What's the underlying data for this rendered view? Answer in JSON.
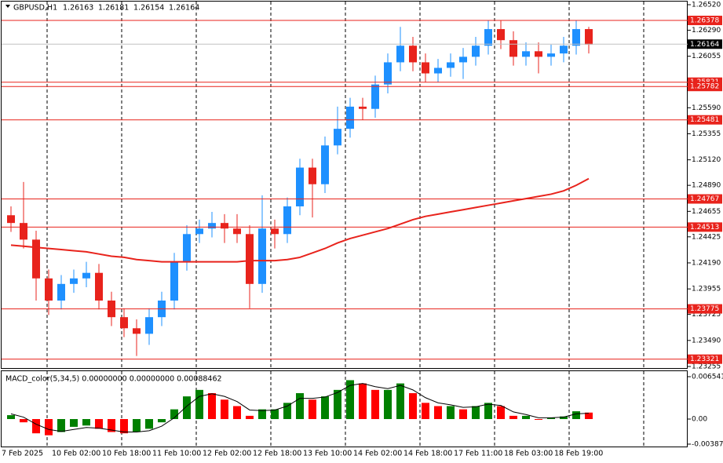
{
  "chart_data": [
    {
      "type": "candlestick",
      "title": "GBPUSD,H1",
      "header_values": [
        1.26163,
        1.26181,
        1.26154,
        1.26164
      ],
      "categories": [
        "7 Feb 2025",
        null,
        null,
        null,
        "10 Feb 02:00",
        null,
        null,
        null,
        "10 Feb 18:00",
        null,
        null,
        null,
        "11 Feb 10:00",
        null,
        null,
        null,
        "12 Feb 02:00",
        null,
        null,
        null,
        "12 Feb 18:00",
        null,
        null,
        null,
        "13 Feb 10:00",
        null,
        null,
        null,
        "14 Feb 02:00",
        null,
        null,
        null,
        "14 Feb 18:00",
        null,
        null,
        null,
        "17 Feb 11:00",
        null,
        null,
        null,
        "18 Feb 03:00",
        null,
        null,
        null,
        "18 Feb 19:00",
        null,
        null
      ],
      "open": [
        1.2462,
        1.2455,
        1.244,
        1.2405,
        1.2385,
        1.24,
        1.2405,
        1.241,
        1.2385,
        1.237,
        1.236,
        1.2355,
        1.237,
        1.2385,
        1.242,
        1.2445,
        1.245,
        1.2455,
        1.245,
        1.2445,
        1.24,
        1.245,
        1.2445,
        1.247,
        1.2505,
        1.249,
        1.2525,
        1.254,
        1.256,
        1.2558,
        1.258,
        1.26,
        1.2615,
        1.26,
        1.259,
        1.2595,
        1.26,
        1.2605,
        1.2615,
        1.263,
        1.262,
        1.2605,
        1.261,
        1.2605,
        1.2608,
        1.2615,
        1.263
      ],
      "high": [
        1.247,
        1.2492,
        1.2448,
        1.2413,
        1.2408,
        1.2413,
        1.242,
        1.2418,
        1.2393,
        1.2378,
        1.2368,
        1.2378,
        1.2393,
        1.2428,
        1.2453,
        1.2458,
        1.2465,
        1.2463,
        1.2463,
        1.2453,
        1.248,
        1.2458,
        1.2478,
        1.2513,
        1.2513,
        1.2533,
        1.256,
        1.2568,
        1.2568,
        1.2588,
        1.2608,
        1.2632,
        1.2623,
        1.2608,
        1.2603,
        1.2608,
        1.2613,
        1.2623,
        1.2638,
        1.2638,
        1.2628,
        1.2618,
        1.2618,
        1.2616,
        1.2623,
        1.2638,
        1.2632
      ],
      "low": [
        1.2447,
        1.2432,
        1.2385,
        1.2372,
        1.2377,
        1.2392,
        1.2397,
        1.2377,
        1.2362,
        1.2352,
        1.2335,
        1.2345,
        1.2362,
        1.2377,
        1.2412,
        1.2437,
        1.2442,
        1.2437,
        1.2437,
        1.2378,
        1.2392,
        1.2432,
        1.2437,
        1.2462,
        1.246,
        1.2482,
        1.2517,
        1.2532,
        1.2548,
        1.255,
        1.2572,
        1.2592,
        1.2592,
        1.2582,
        1.2582,
        1.2587,
        1.2585,
        1.2597,
        1.2607,
        1.2612,
        1.2597,
        1.2597,
        1.259,
        1.2597,
        1.26,
        1.2607,
        1.2608
      ],
      "close": [
        1.2455,
        1.244,
        1.2405,
        1.2385,
        1.24,
        1.2405,
        1.241,
        1.2385,
        1.237,
        1.236,
        1.2355,
        1.237,
        1.2385,
        1.242,
        1.2445,
        1.245,
        1.2455,
        1.245,
        1.2445,
        1.24,
        1.245,
        1.2445,
        1.247,
        1.2505,
        1.249,
        1.2525,
        1.254,
        1.256,
        1.2558,
        1.258,
        1.26,
        1.2615,
        1.26,
        1.259,
        1.2595,
        1.26,
        1.2605,
        1.2615,
        1.263,
        1.262,
        1.2605,
        1.261,
        1.2605,
        1.2608,
        1.2615,
        1.263,
        1.2616
      ],
      "up_color": "#1e90ff",
      "down_color": "#e8231c",
      "ma": {
        "color": "#e8231c",
        "values": [
          1.2435,
          1.2434,
          1.2433,
          1.2432,
          1.2431,
          1.243,
          1.2429,
          1.2427,
          1.2425,
          1.2424,
          1.2422,
          1.2421,
          1.242,
          1.242,
          1.242,
          1.242,
          1.242,
          1.242,
          1.242,
          1.2421,
          1.2421,
          1.2421,
          1.2422,
          1.2424,
          1.2428,
          1.2432,
          1.2437,
          1.2441,
          1.2444,
          1.2447,
          1.245,
          1.2454,
          1.2458,
          1.2461,
          1.2463,
          1.2465,
          1.2467,
          1.2469,
          1.2471,
          1.2473,
          1.2475,
          1.2477,
          1.2479,
          1.2481,
          1.2484,
          1.2489,
          1.2495
        ]
      },
      "levels": [
        1.26378,
        1.25821,
        1.25782,
        1.25481,
        1.24767,
        1.24513,
        1.23775,
        1.23321
      ],
      "level_color": "#e8231c",
      "last_price": 1.26164,
      "ylim": [
        1.23255,
        1.2652
      ],
      "yticks": [
        {
          "value": 1.2652,
          "label": "1.26520"
        },
        {
          "value": 1.2629,
          "label": "1.26290"
        },
        1.26055,
        {
          "value": 1.2582,
          "label": "1.25820"
        },
        {
          "value": 1.2559,
          "label": "1.25590"
        },
        1.25355,
        {
          "value": 1.2512,
          "label": "1.25120"
        },
        {
          "value": 1.2489,
          "label": "1.24890"
        },
        1.24655,
        1.24425,
        {
          "value": 1.2419,
          "label": "1.24190"
        },
        1.23955,
        1.23725,
        {
          "value": 1.2349,
          "label": "1.23490"
        },
        1.23255
      ]
    },
    {
      "type": "macd",
      "title": "MACD_color(5,34,5) 0.00000000 0.00000000 0.00088462",
      "values": [
        0.0006,
        -0.0005,
        -0.0022,
        -0.0025,
        -0.002,
        -0.0012,
        -0.001,
        -0.0015,
        -0.002,
        -0.0022,
        -0.002,
        -0.0015,
        -0.0005,
        0.0015,
        0.0035,
        0.0045,
        0.004,
        0.003,
        0.002,
        0.0005,
        0.0015,
        0.0015,
        0.0025,
        0.004,
        0.003,
        0.0035,
        0.0045,
        0.006,
        0.0055,
        0.0045,
        0.0045,
        0.0055,
        0.004,
        0.0025,
        0.002,
        0.002,
        0.0015,
        0.002,
        0.0025,
        0.002,
        0.0005,
        0.0005,
        0.0,
        0.0002,
        0.0004,
        0.0012,
        0.001
      ],
      "signal": [
        0.0008,
        0.0003,
        -0.0008,
        -0.0016,
        -0.0019,
        -0.0016,
        -0.0013,
        -0.0014,
        -0.0017,
        -0.002,
        -0.002,
        -0.0018,
        -0.0011,
        0.0002,
        0.002,
        0.0035,
        0.0039,
        0.0035,
        0.0027,
        0.0014,
        0.0013,
        0.0014,
        0.002,
        0.0032,
        0.0032,
        0.0034,
        0.0041,
        0.0052,
        0.0055,
        0.005,
        0.0047,
        0.0052,
        0.0045,
        0.0033,
        0.0025,
        0.0022,
        0.0018,
        0.0019,
        0.0023,
        0.0021,
        0.0011,
        0.0007,
        0.0002,
        0.0002,
        0.0003,
        0.0008,
        0.0009
      ],
      "up_color": "#008000",
      "down_color": "#ff0000",
      "signal_color": "#000000",
      "ylim": [
        -0.00436,
        0.00739
      ],
      "yticks": [
        0.0065414,
        {
          "value": 0,
          "label": "0.00"
        },
        {
          "value": -0.00387,
          "label": "-0.003870"
        }
      ]
    }
  ]
}
